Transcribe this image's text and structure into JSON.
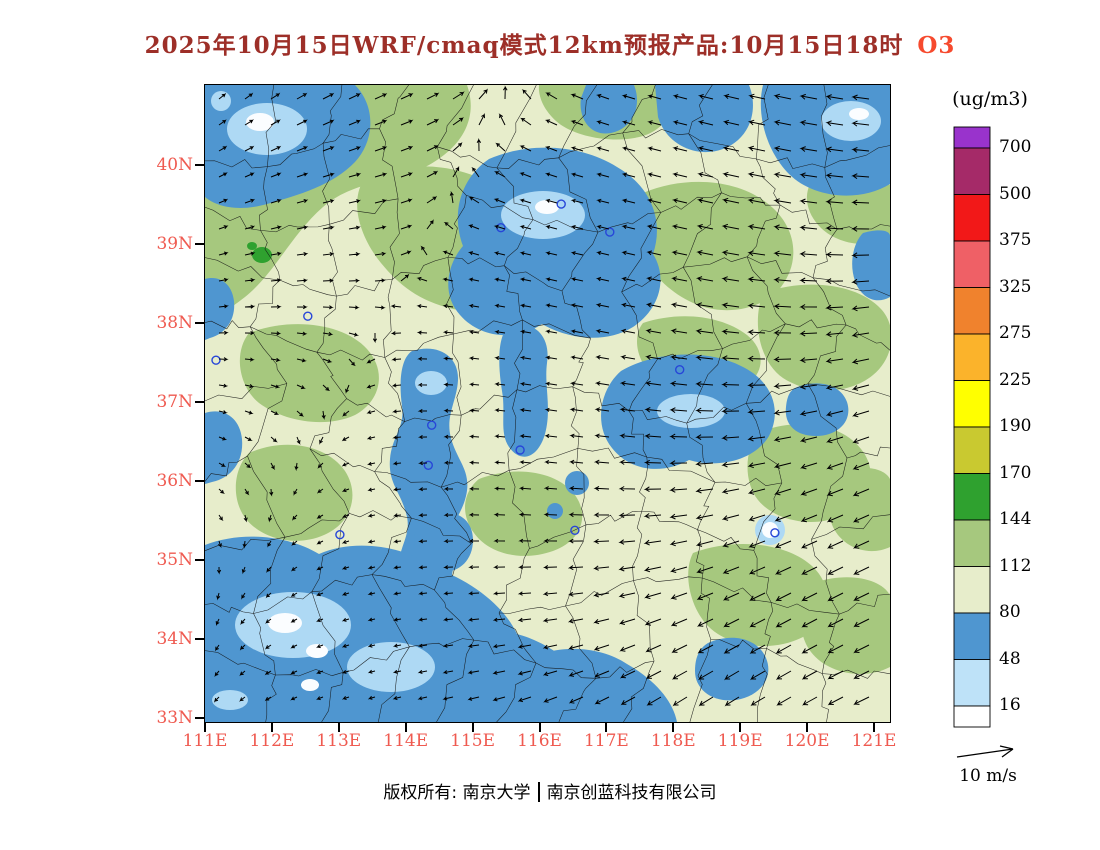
{
  "title": {
    "text": "2025年10月15日WRF/cmaq模式12km预报产品:10月15日18时",
    "species": "O3"
  },
  "colorbar": {
    "unit": "(ug/m3)",
    "levels": [
      700,
      500,
      375,
      325,
      275,
      225,
      190,
      170,
      144,
      112,
      80,
      48,
      16
    ],
    "colors_top_to_bottom": [
      "#9933CC",
      "#A52A68",
      "#F21818",
      "#EF6066",
      "#F0822D",
      "#FBB32B",
      "#FFFF00",
      "#C9C930",
      "#2FA12F",
      "#A6C87E",
      "#E7EDCB",
      "#4F96D0",
      "#BEE2F8",
      "#FFFFFF"
    ]
  },
  "axes": {
    "lat_ticks": [
      {
        "value": 40,
        "label": "40N"
      },
      {
        "value": 39,
        "label": "39N"
      },
      {
        "value": 38,
        "label": "38N"
      },
      {
        "value": 37,
        "label": "37N"
      },
      {
        "value": 36,
        "label": "36N"
      },
      {
        "value": 35,
        "label": "35N"
      },
      {
        "value": 34,
        "label": "34N"
      },
      {
        "value": 33,
        "label": "33N"
      }
    ],
    "lon_ticks": [
      {
        "value": 111,
        "label": "111E"
      },
      {
        "value": 112,
        "label": "112E"
      },
      {
        "value": 113,
        "label": "113E"
      },
      {
        "value": 114,
        "label": "114E"
      },
      {
        "value": 115,
        "label": "115E"
      },
      {
        "value": 116,
        "label": "116E"
      },
      {
        "value": 117,
        "label": "117E"
      },
      {
        "value": 118,
        "label": "118E"
      },
      {
        "value": 119,
        "label": "119E"
      },
      {
        "value": 120,
        "label": "120E"
      },
      {
        "value": 121,
        "label": "121E"
      }
    ]
  },
  "wind_legend": {
    "label": "10 m/s"
  },
  "footer": {
    "owner": "版权所有: 南京大学",
    "company": "南京创蓝科技有限公司"
  },
  "colors": {
    "map_background": "#E7EDCB",
    "green_patch": "#A6C87E",
    "bright_green": "#2FA12F",
    "blue_low": "#4F96D0",
    "light_blue": "#AED9F4",
    "white_core": "#FBFDFF",
    "axis_label_red": "#EF5A50",
    "title_color": "#9D2F28",
    "species_color": "#F64A2E",
    "station_marker_blue": "#2746D8"
  },
  "chart_data": {
    "type": "heatmap",
    "title": "2025年10月15日WRF/cmaq模式12km预报产品:10月15日18时 O3",
    "variable": "O3",
    "unit": "ug/m3",
    "model": "WRF/cmaq 12km",
    "valid_time": "10月15日18时",
    "x_axis": {
      "label": "longitude",
      "ticks": [
        "111E",
        "112E",
        "113E",
        "114E",
        "115E",
        "116E",
        "117E",
        "118E",
        "119E",
        "120E",
        "121E"
      ],
      "range": [
        111,
        121.2
      ]
    },
    "y_axis": {
      "label": "latitude",
      "ticks": [
        "33N",
        "34N",
        "35N",
        "36N",
        "37N",
        "38N",
        "39N",
        "40N"
      ],
      "range": [
        32.95,
        41.0
      ]
    },
    "contour_levels": [
      16,
      48,
      80,
      112,
      144,
      170,
      190,
      225,
      275,
      325,
      375,
      500,
      700
    ],
    "palette_low_to_high": [
      "#FFFFFF",
      "#BEE2F8",
      "#4F96D0",
      "#E7EDCB",
      "#A6C87E",
      "#2FA12F",
      "#C9C930",
      "#FFFF00",
      "#FBB32B",
      "#F0822D",
      "#EF6066",
      "#F21818",
      "#A52A68",
      "#9933CC"
    ],
    "value_summary": [
      {
        "region": "northwest corner, upper-middle (37.5-39.5N, 114-117E), northeast corner",
        "o3_range": "16-80 (blue, low)"
      },
      {
        "region": "southwest quadrant and south-central band (33-34.5N, 111-117E)",
        "o3_range": "16-80 (blue, low)"
      },
      {
        "region": "central vertical band near 114E (35-38N) and mid-east blob near 117-118E, 36.5N",
        "o3_range": "48-80"
      },
      {
        "region": "most of the remaining plains",
        "o3_range": "80-112 (pale green)"
      },
      {
        "region": "scattered patches upper-left, center-right, lower-right",
        "o3_range": "112-144 (yellow-green)"
      },
      {
        "region": "small spot near 39.4N 111.8E",
        "o3_range": "144-170 (green)"
      }
    ],
    "wind": {
      "reference_vector": "10 m/s",
      "pattern": "long northeasterly vectors (pointing WSW) over the east, up-right vectors in the northwest, short variable vectors center and south"
    },
    "station_markers": [
      [
        0.432,
        0.224
      ],
      [
        0.52,
        0.187
      ],
      [
        0.591,
        0.231
      ],
      [
        0.15,
        0.363
      ],
      [
        0.016,
        0.432
      ],
      [
        0.331,
        0.534
      ],
      [
        0.326,
        0.597
      ],
      [
        0.46,
        0.573
      ],
      [
        0.54,
        0.699
      ],
      [
        0.197,
        0.706
      ],
      [
        0.832,
        0.703
      ],
      [
        0.693,
        0.447
      ]
    ]
  }
}
